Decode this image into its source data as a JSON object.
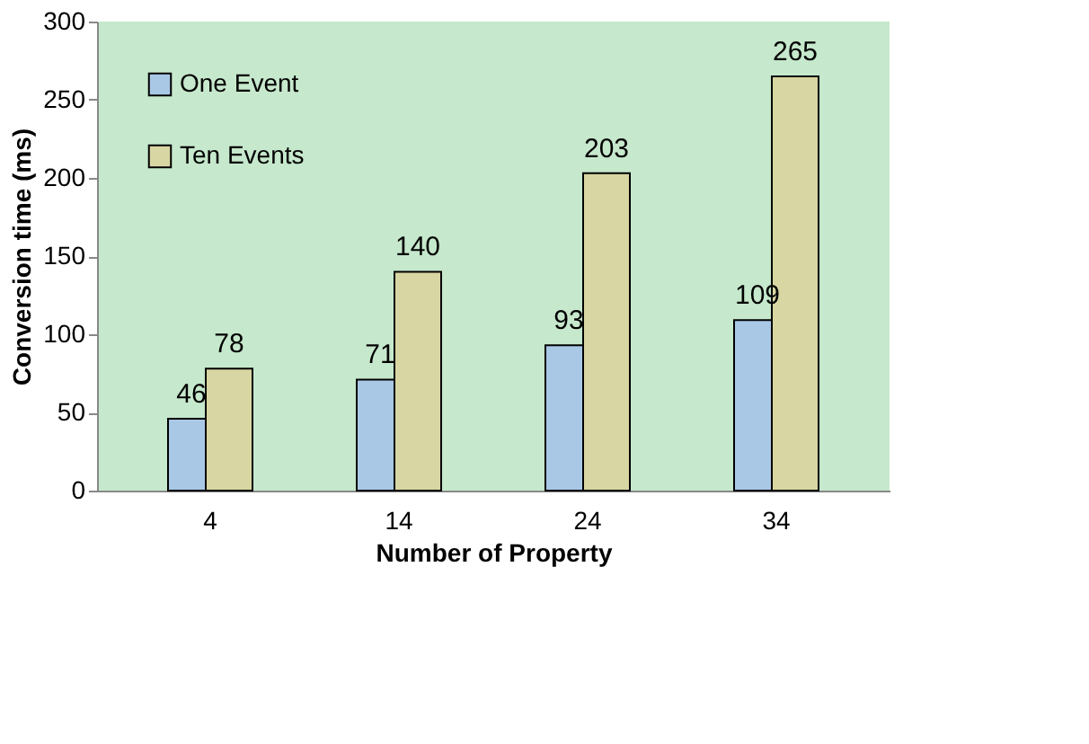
{
  "chart_data": {
    "type": "bar",
    "xlabel": "Number of Property",
    "ylabel": "Conversion time (ms)",
    "categories": [
      "4",
      "14",
      "24",
      "34"
    ],
    "series": [
      {
        "name": "One Event",
        "color": "#a9c8e6",
        "values": [
          46,
          71,
          93,
          109
        ]
      },
      {
        "name": "Ten Events",
        "color": "#d8d6a2",
        "values": [
          78,
          140,
          203,
          265
        ]
      }
    ],
    "ylim": [
      0,
      300
    ],
    "yticks": [
      0,
      50,
      100,
      150,
      200,
      250,
      300
    ],
    "grid": false,
    "legend": "top left",
    "data_labels": true
  }
}
